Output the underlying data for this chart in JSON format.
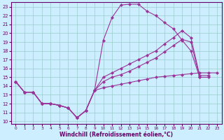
{
  "xlabel": "Windchill (Refroidissement éolien,°C)",
  "bg_color": "#cceeff",
  "grid_color": "#99cccc",
  "line_color": "#993399",
  "xlim": [
    0,
    23
  ],
  "ylim": [
    10,
    23
  ],
  "xticks": [
    0,
    1,
    2,
    3,
    4,
    5,
    6,
    7,
    8,
    9,
    10,
    11,
    12,
    13,
    14,
    15,
    16,
    17,
    18,
    19,
    20,
    21,
    22,
    23
  ],
  "yticks": [
    10,
    11,
    12,
    13,
    14,
    15,
    16,
    17,
    18,
    19,
    20,
    21,
    22,
    23
  ],
  "series": [
    {
      "x": [
        0,
        1,
        2,
        3,
        4,
        5,
        6,
        7,
        8,
        9,
        10,
        11,
        12,
        13,
        14,
        15,
        16,
        17,
        18,
        19,
        20,
        21
      ],
      "y": [
        14.5,
        13.3,
        13.3,
        12.0,
        12.0,
        11.8,
        11.5,
        10.4,
        11.2,
        13.5,
        19.2,
        21.8,
        23.2,
        23.3,
        23.3,
        22.5,
        22.0,
        21.2,
        20.5,
        19.2,
        18.0,
        15.0
      ]
    },
    {
      "x": [
        0,
        1,
        2,
        3,
        4,
        5,
        6,
        7,
        8,
        9,
        10,
        11,
        12,
        13,
        14,
        15,
        16,
        17,
        18,
        19,
        20,
        21,
        22,
        23
      ],
      "y": [
        14.5,
        13.3,
        13.3,
        12.0,
        12.0,
        11.8,
        11.5,
        10.4,
        11.2,
        13.5,
        15.0,
        15.5,
        16.0,
        16.5,
        17.0,
        17.5,
        18.0,
        18.8,
        19.5,
        20.3,
        19.5,
        15.2,
        15.2,
        null
      ]
    },
    {
      "x": [
        0,
        1,
        2,
        3,
        4,
        5,
        6,
        7,
        8,
        9,
        10,
        11,
        12,
        13,
        14,
        15,
        16,
        17,
        18,
        19,
        20,
        21,
        22,
        23
      ],
      "y": [
        14.5,
        13.3,
        13.3,
        12.0,
        12.0,
        11.8,
        11.5,
        10.4,
        11.2,
        13.5,
        14.5,
        15.0,
        15.3,
        15.7,
        16.2,
        16.7,
        17.2,
        17.9,
        18.6,
        19.3,
        19.0,
        15.0,
        15.0,
        null
      ]
    },
    {
      "x": [
        0,
        1,
        2,
        3,
        4,
        5,
        6,
        7,
        8,
        9,
        10,
        11,
        12,
        13,
        14,
        15,
        16,
        17,
        18,
        19,
        20,
        21,
        22,
        23
      ],
      "y": [
        14.5,
        13.3,
        13.3,
        12.0,
        12.0,
        11.8,
        11.5,
        10.4,
        11.2,
        13.5,
        13.8,
        14.0,
        14.2,
        14.4,
        14.6,
        14.8,
        15.0,
        15.1,
        15.2,
        15.3,
        15.4,
        15.5,
        15.5,
        15.5
      ]
    }
  ]
}
